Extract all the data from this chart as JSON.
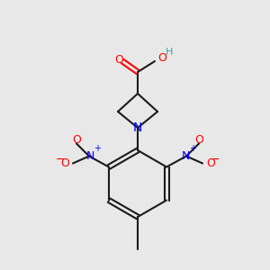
{
  "bg_color": "#e8e8e8",
  "bond_color": "#1a1a1a",
  "bond_lw": 1.5,
  "atom_colors": {
    "O": "#ff0000",
    "N": "#0000ff",
    "C": "#1a1a1a",
    "H": "#4aa0a0"
  },
  "font_size": 9,
  "font_size_small": 8
}
